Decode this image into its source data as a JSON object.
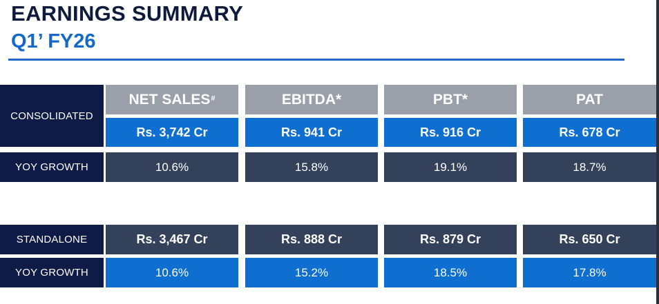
{
  "title": "EARNINGS SUMMARY",
  "subtitle": "Q1’ FY26",
  "columns": [
    {
      "label": "NET SALES",
      "mark": "#"
    },
    {
      "label": "EBITDA*",
      "mark": ""
    },
    {
      "label": "PBT*",
      "mark": ""
    },
    {
      "label": "PAT",
      "mark": ""
    }
  ],
  "consolidated": {
    "label": "CONSOLIDATED",
    "values": [
      "Rs. 3,742 Cr",
      "Rs. 941 Cr",
      "Rs. 916 Cr",
      "Rs. 678 Cr"
    ],
    "growth_label": "YOY GROWTH",
    "growth": [
      "10.6%",
      "15.8%",
      "19.1%",
      "18.7%"
    ]
  },
  "standalone": {
    "label": "STANDALONE",
    "values": [
      "Rs. 3,467 Cr",
      "Rs. 888 Cr",
      "Rs. 879 Cr",
      "Rs. 650 Cr"
    ],
    "growth_label": "YOY GROWTH",
    "growth": [
      "10.6%",
      "15.2%",
      "18.5%",
      "17.8%"
    ]
  },
  "colors": {
    "navy": "#0d1b46",
    "header_grey": "#9aa0aa",
    "blue": "#0f6fd0",
    "slate": "#34415a",
    "title_blue": "#1469c8"
  }
}
